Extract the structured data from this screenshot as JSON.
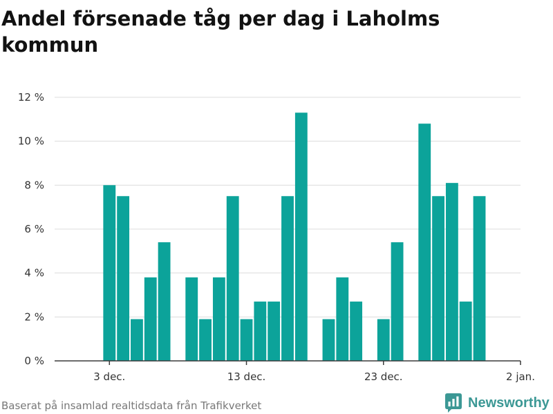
{
  "chart_data": {
    "type": "bar",
    "title": "Andel försenade tåg per dag i Laholms kommun",
    "xlim": [
      "29 nov.",
      "2 jan."
    ],
    "ylim": [
      0,
      12
    ],
    "grid": true,
    "bar_color": "#0ca39a",
    "y_ticks": [
      {
        "value": 0,
        "label": "0 %"
      },
      {
        "value": 2,
        "label": "2 %"
      },
      {
        "value": 4,
        "label": "4 %"
      },
      {
        "value": 6,
        "label": "6 %"
      },
      {
        "value": 8,
        "label": "8 %"
      },
      {
        "value": 10,
        "label": "10 %"
      },
      {
        "value": 12,
        "label": "12 %"
      }
    ],
    "x_ticks": [
      "3 dec.",
      "13 dec.",
      "23 dec.",
      "2 jan."
    ],
    "x": [
      "3 dec.",
      "4 dec.",
      "5 dec.",
      "6 dec.",
      "7 dec.",
      "8 dec.",
      "9 dec.",
      "10 dec.",
      "11 dec.",
      "12 dec.",
      "13 dec.",
      "14 dec.",
      "15 dec.",
      "16 dec.",
      "17 dec.",
      "18 dec.",
      "19 dec.",
      "20 dec.",
      "21 dec.",
      "22 dec.",
      "23 dec.",
      "24 dec.",
      "25 dec.",
      "26 dec.",
      "27 dec.",
      "28 dec.",
      "29 dec.",
      "30 dec."
    ],
    "values": [
      8.0,
      7.5,
      1.9,
      3.8,
      5.4,
      0,
      3.8,
      1.9,
      3.8,
      7.5,
      1.9,
      2.7,
      2.7,
      7.5,
      11.3,
      0,
      1.9,
      3.8,
      2.7,
      0,
      1.9,
      5.4,
      0,
      10.8,
      7.5,
      8.1,
      2.7,
      7.5
    ]
  },
  "footer": {
    "source": "Baserat på insamlad realtidsdata från Trafikverket",
    "logo_text": "Newsworthy",
    "logo_icon": "newsworthy-logo-icon",
    "logo_color": "#3c9895"
  }
}
